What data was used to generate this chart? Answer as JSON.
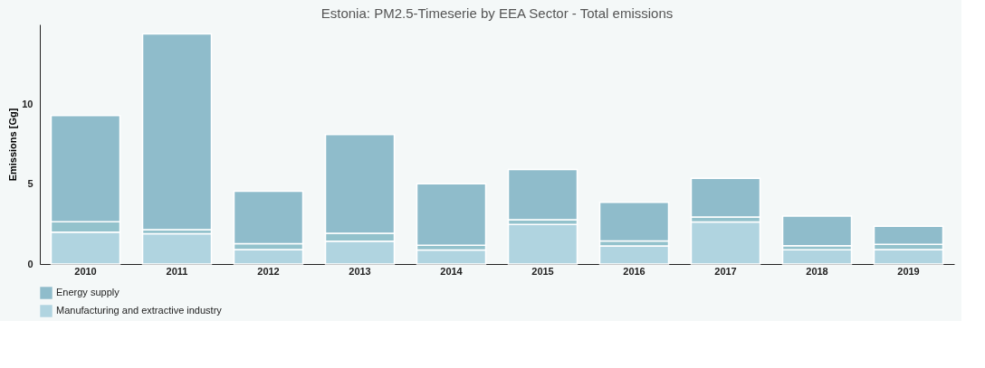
{
  "chart_data": {
    "type": "bar",
    "title": "Estonia: PM2.5-Timeserie by EEA Sector - Total emissions",
    "ylabel": "Emissions [Gg]",
    "categories": [
      "2010",
      "2011",
      "2012",
      "2013",
      "2014",
      "2015",
      "2016",
      "2017",
      "2018",
      "2019"
    ],
    "stacked": true,
    "series": [
      {
        "name": "Manufacturing and extractive industry",
        "color": "#b0d4e0",
        "values": [
          2.0,
          1.9,
          0.9,
          1.43,
          0.88,
          2.48,
          1.13,
          2.63,
          0.89,
          0.91
        ]
      },
      {
        "color": "#93c2cc",
        "values": [
          0.65,
          0.25,
          0.38,
          0.5,
          0.3,
          0.29,
          0.32,
          0.32,
          0.25,
          0.32
        ]
      },
      {
        "name": "Energy supply",
        "color": "#8fbccb",
        "values": [
          6.65,
          12.25,
          3.27,
          6.18,
          3.85,
          3.15,
          2.41,
          2.42,
          1.86,
          1.14
        ]
      }
    ],
    "ylim": [
      0,
      15
    ],
    "yticks": [
      0,
      5,
      10
    ],
    "grid": false,
    "legend": "bottom left"
  }
}
